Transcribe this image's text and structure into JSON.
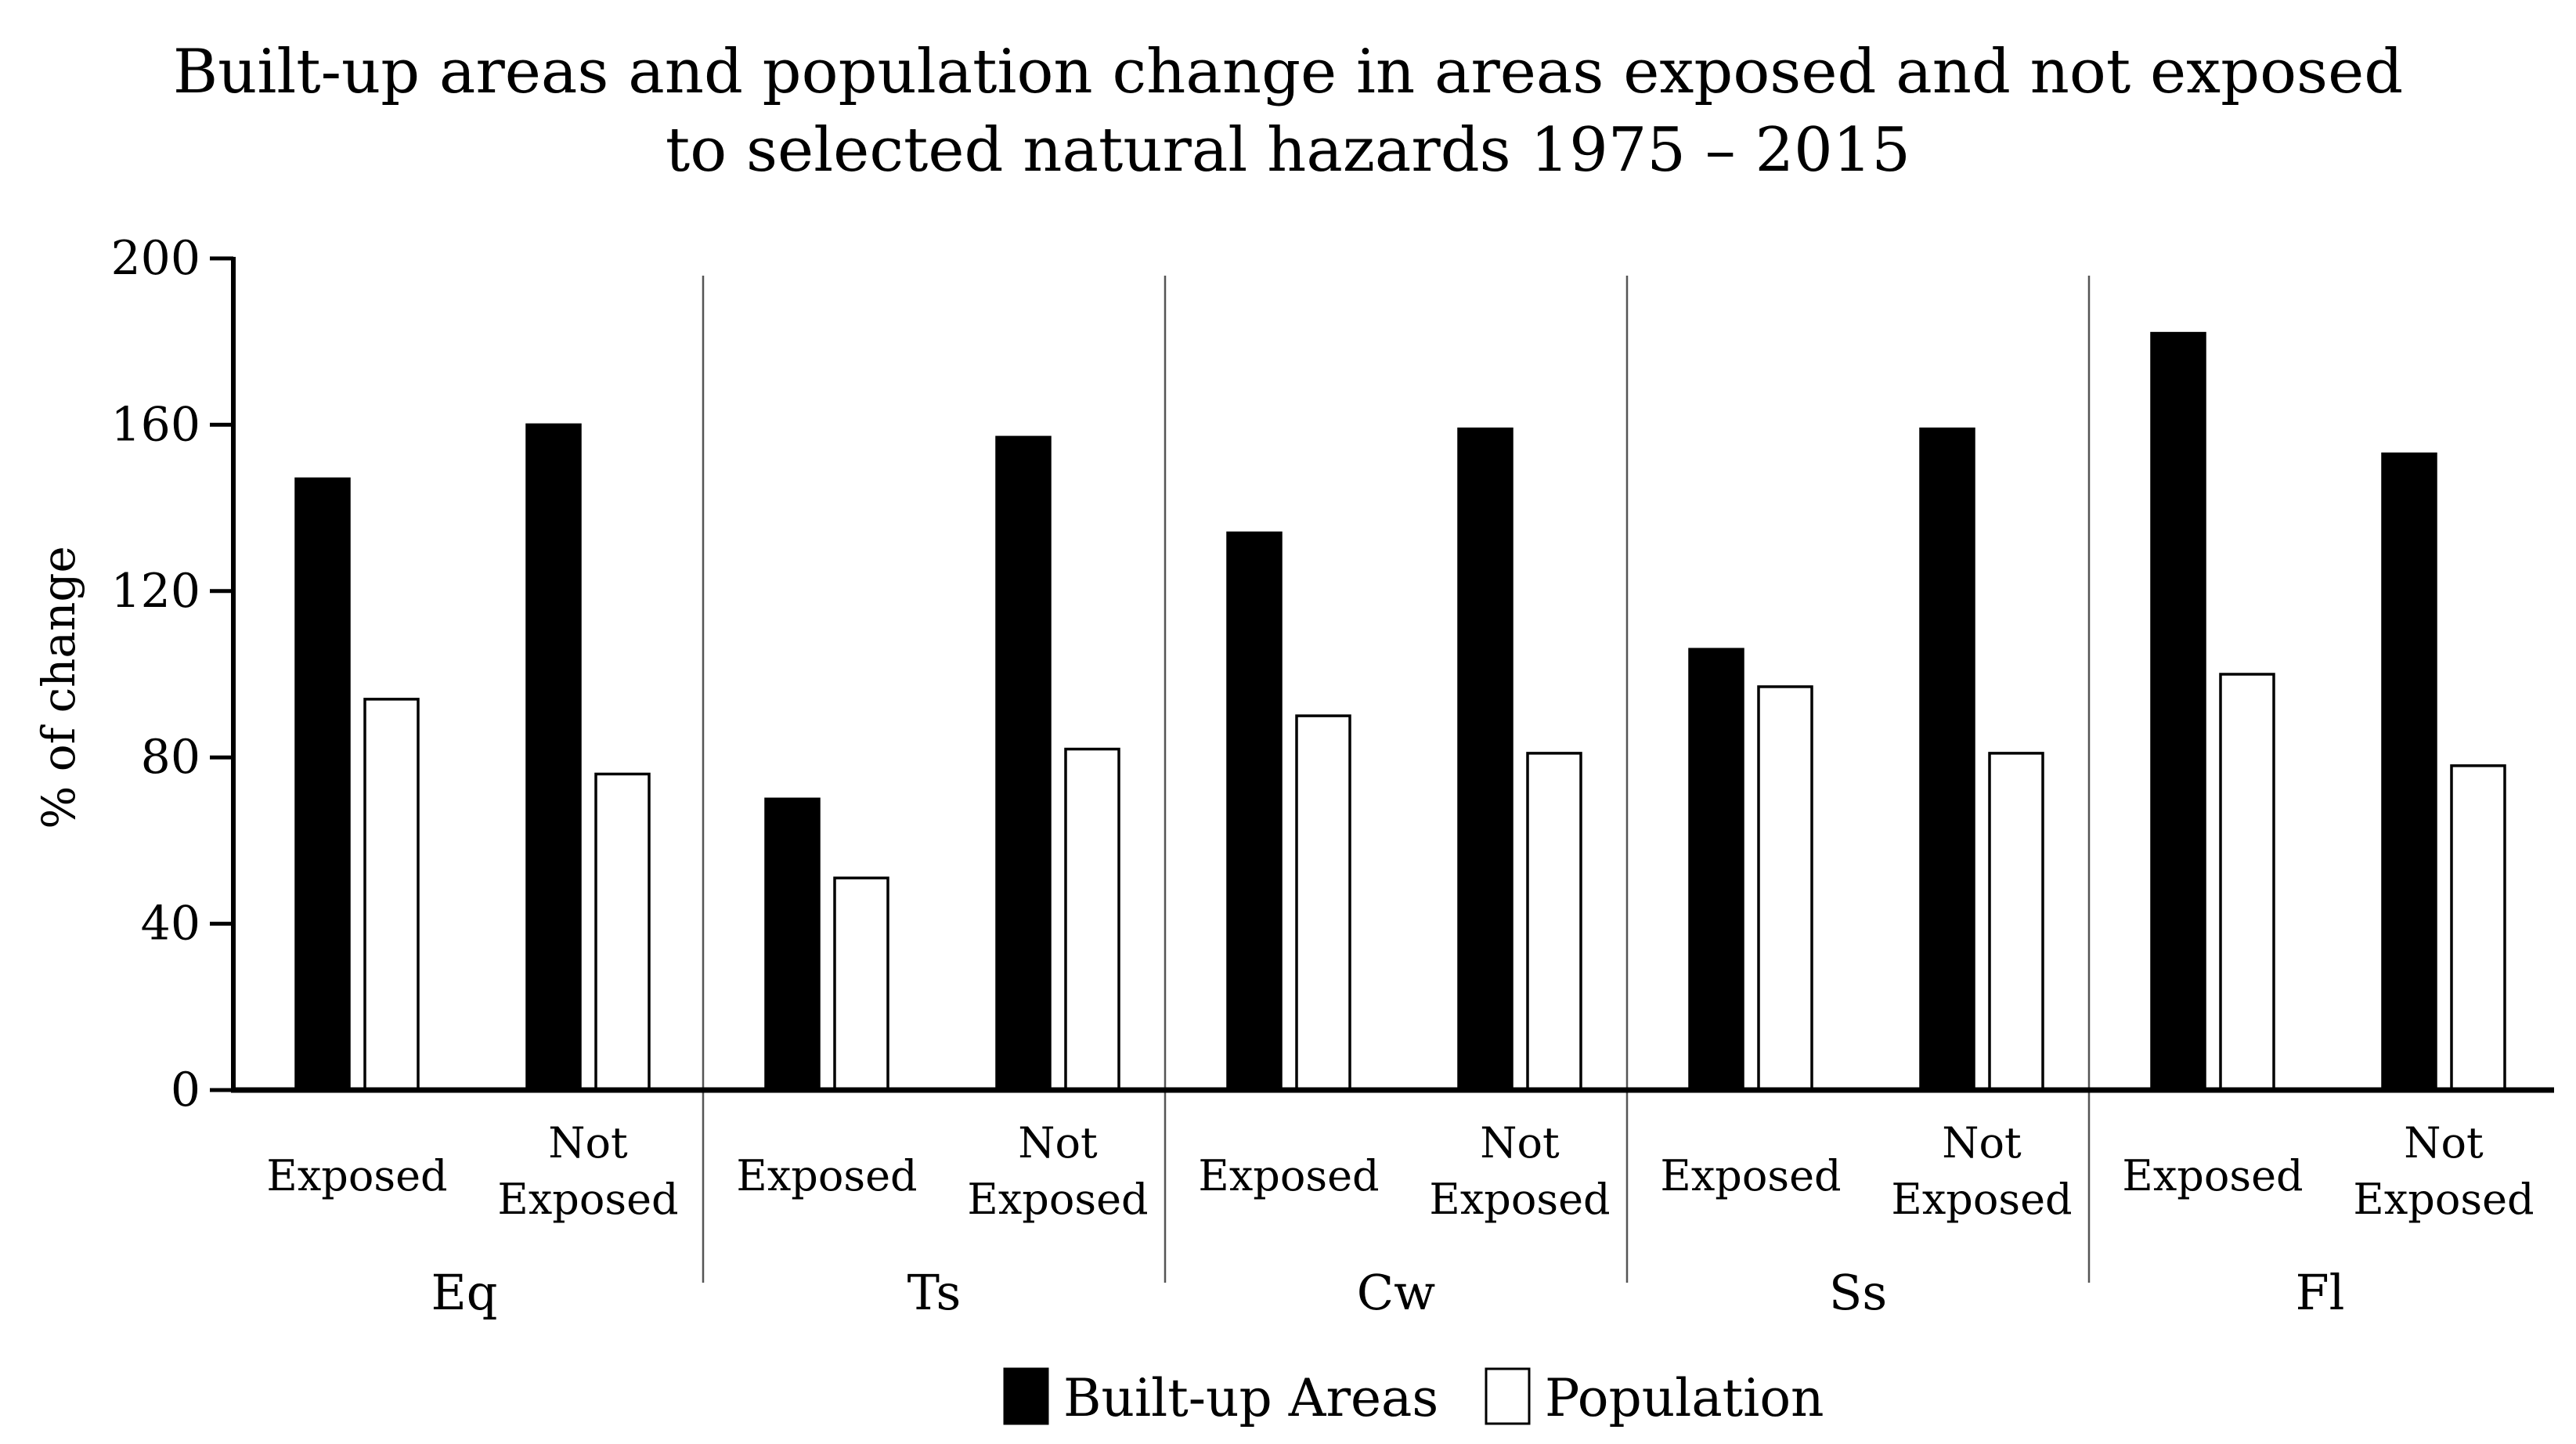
{
  "chart_data": {
    "type": "bar",
    "title_lines": [
      "Built-up areas and population change in areas exposed and not exposed",
      "to selected natural hazards 1975 – 2015"
    ],
    "ylabel": "% of change",
    "ylim": [
      0,
      200
    ],
    "yticks": [
      "0",
      "40",
      "80",
      "120",
      "160",
      "200"
    ],
    "groups": [
      {
        "label": "Eq",
        "sub": [
          {
            "label": [
              "Exposed"
            ],
            "values": [
              147,
              94
            ]
          },
          {
            "label": [
              "Not",
              "Exposed"
            ],
            "values": [
              160,
              76
            ]
          }
        ]
      },
      {
        "label": "Ts",
        "sub": [
          {
            "label": [
              "Exposed"
            ],
            "values": [
              70,
              51
            ]
          },
          {
            "label": [
              "Not",
              "Exposed"
            ],
            "values": [
              157,
              82
            ]
          }
        ]
      },
      {
        "label": "Cw",
        "sub": [
          {
            "label": [
              "Exposed"
            ],
            "values": [
              134,
              90
            ]
          },
          {
            "label": [
              "Not",
              "Exposed"
            ],
            "values": [
              159,
              81
            ]
          }
        ]
      },
      {
        "label": "Ss",
        "sub": [
          {
            "label": [
              "Exposed"
            ],
            "values": [
              106,
              97
            ]
          },
          {
            "label": [
              "Not",
              "Exposed"
            ],
            "values": [
              159,
              81
            ]
          }
        ]
      },
      {
        "label": "Fl",
        "sub": [
          {
            "label": [
              "Exposed"
            ],
            "values": [
              182,
              100
            ]
          },
          {
            "label": [
              "Not",
              "Exposed"
            ],
            "values": [
              153,
              78
            ]
          }
        ]
      }
    ],
    "series": [
      {
        "name": "Built-up Areas",
        "color": "#000000"
      },
      {
        "name": "Population",
        "color": "#ffffff"
      }
    ],
    "legend_position": "bottom-center"
  }
}
